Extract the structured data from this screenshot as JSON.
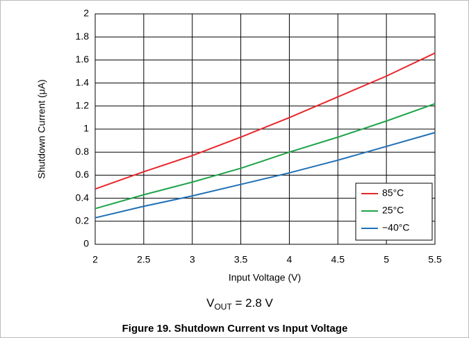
{
  "chart_data": {
    "type": "line",
    "x": [
      2,
      2.5,
      3,
      3.5,
      4,
      4.5,
      5,
      5.5
    ],
    "series": [
      {
        "name": "85°C",
        "color": "#e8262b",
        "values": [
          0.48,
          0.63,
          0.77,
          0.93,
          1.1,
          1.28,
          1.46,
          1.66
        ]
      },
      {
        "name": "25°C",
        "color": "#1ea34a",
        "values": [
          0.31,
          0.43,
          0.54,
          0.66,
          0.8,
          0.93,
          1.07,
          1.22
        ]
      },
      {
        "name": "−40°C",
        "color": "#1f6fb5",
        "values": [
          0.23,
          0.33,
          0.42,
          0.52,
          0.62,
          0.73,
          0.85,
          0.97
        ]
      }
    ],
    "xlim": [
      2,
      5.5
    ],
    "xticks": [
      2,
      2.5,
      3,
      3.5,
      4,
      4.5,
      5,
      5.5
    ],
    "ylim": [
      0,
      2
    ],
    "yticks": [
      0,
      0.2,
      0.4,
      0.6,
      0.8,
      1,
      1.2,
      1.4,
      1.6,
      1.8,
      2
    ],
    "grid": true,
    "legend": "lower right",
    "xlabel": "Input Voltage (V)",
    "ylabel": "Shutdown Current (μA)",
    "annotation": {
      "main": "V",
      "sub": "OUT",
      "rest": " = 2.8 V"
    },
    "caption": "Figure 19. Shutdown Current vs Input Voltage"
  }
}
